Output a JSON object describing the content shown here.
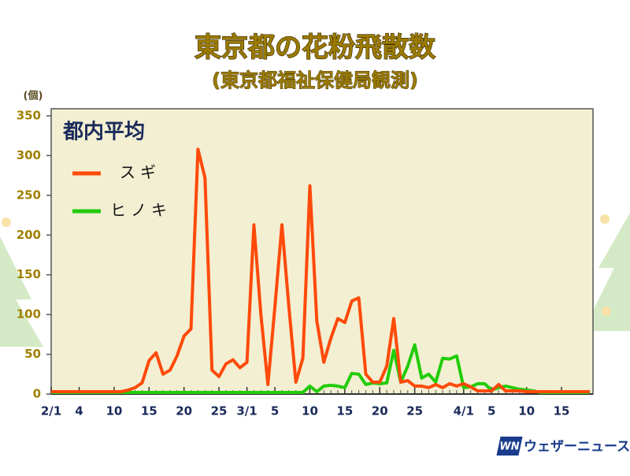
{
  "chart_data": {
    "type": "line",
    "title": "東京都の花粉飛散数",
    "subtitle": "(東京都福祉保健局観測)",
    "y_label": "(個)",
    "legend_title": "都内平均",
    "legend": "upper left",
    "x": [
      0,
      1,
      2,
      3,
      4,
      5,
      6,
      7,
      8,
      9,
      10,
      11,
      12,
      13,
      14,
      15,
      16,
      17,
      18,
      19,
      20,
      21,
      22,
      23,
      24,
      25,
      26,
      27,
      28,
      29,
      30,
      31,
      32,
      33,
      34,
      35,
      36,
      37,
      38,
      39,
      40,
      41,
      42,
      43,
      44,
      45,
      46,
      47,
      48,
      49,
      50,
      51,
      52,
      53,
      54,
      55,
      56,
      57,
      58,
      59,
      60,
      61,
      62,
      63,
      64,
      65,
      66,
      67,
      68,
      69,
      70,
      71,
      72,
      73,
      74,
      75,
      76,
      77
    ],
    "series": [
      {
        "name": "スギ",
        "color": "#ff4a0a",
        "values": [
          3,
          3,
          3,
          3,
          3,
          3,
          3,
          3,
          3,
          3,
          3,
          5,
          8,
          14,
          42,
          52,
          25,
          30,
          48,
          73,
          82,
          308,
          272,
          30,
          22,
          38,
          43,
          33,
          40,
          213,
          100,
          12,
          110,
          213,
          110,
          15,
          45,
          262,
          92,
          40,
          70,
          95,
          90,
          117,
          121,
          25,
          15,
          15,
          35,
          95,
          15,
          17,
          10,
          10,
          8,
          12,
          8,
          13,
          10,
          13,
          9,
          4,
          4,
          4,
          12,
          4,
          4,
          4,
          3,
          3,
          3,
          3,
          3,
          3,
          3,
          3,
          3,
          3
        ]
      },
      {
        "name": "ヒノキ",
        "color": "#22cc0a",
        "values": [
          2,
          2,
          2,
          2,
          2,
          2,
          2,
          2,
          2,
          2,
          2,
          2,
          2,
          2,
          2,
          2,
          2,
          2,
          2,
          2,
          2,
          2,
          2,
          2,
          2,
          2,
          2,
          2,
          2,
          2,
          2,
          2,
          2,
          2,
          2,
          2,
          2,
          10,
          3,
          10,
          11,
          10,
          8,
          26,
          25,
          12,
          14,
          13,
          14,
          55,
          15,
          35,
          62,
          20,
          25,
          15,
          45,
          44,
          48,
          8,
          9,
          13,
          13,
          5,
          8,
          10,
          8,
          6,
          5,
          4,
          2,
          2,
          2,
          2,
          2,
          2,
          2,
          2
        ]
      }
    ],
    "xlim": [
      0,
      77.5
    ],
    "xticks": [
      {
        "value": 0,
        "label": "2/1"
      },
      4,
      {
        "value": 9,
        "label": "10"
      },
      {
        "value": 14,
        "label": "15"
      },
      {
        "value": 19,
        "label": "20"
      },
      {
        "value": 24,
        "label": "25"
      },
      {
        "value": 28,
        "label": "3/1"
      },
      {
        "value": 32,
        "label": "5"
      },
      {
        "value": 37,
        "label": "10"
      },
      {
        "value": 42,
        "label": "15"
      },
      {
        "value": 47,
        "label": "20"
      },
      {
        "value": 52,
        "label": "25"
      },
      {
        "value": 59,
        "label": "4/1"
      },
      {
        "value": 63,
        "label": "5"
      },
      {
        "value": 68,
        "label": "10"
      },
      {
        "value": 73,
        "label": "15"
      }
    ],
    "ylim": [
      0,
      350
    ],
    "yticks": [
      0,
      50,
      100,
      150,
      200,
      250,
      300,
      350
    ],
    "grid": false
  },
  "branding": {
    "mark": "WN",
    "name": "ウェザーニュース"
  }
}
